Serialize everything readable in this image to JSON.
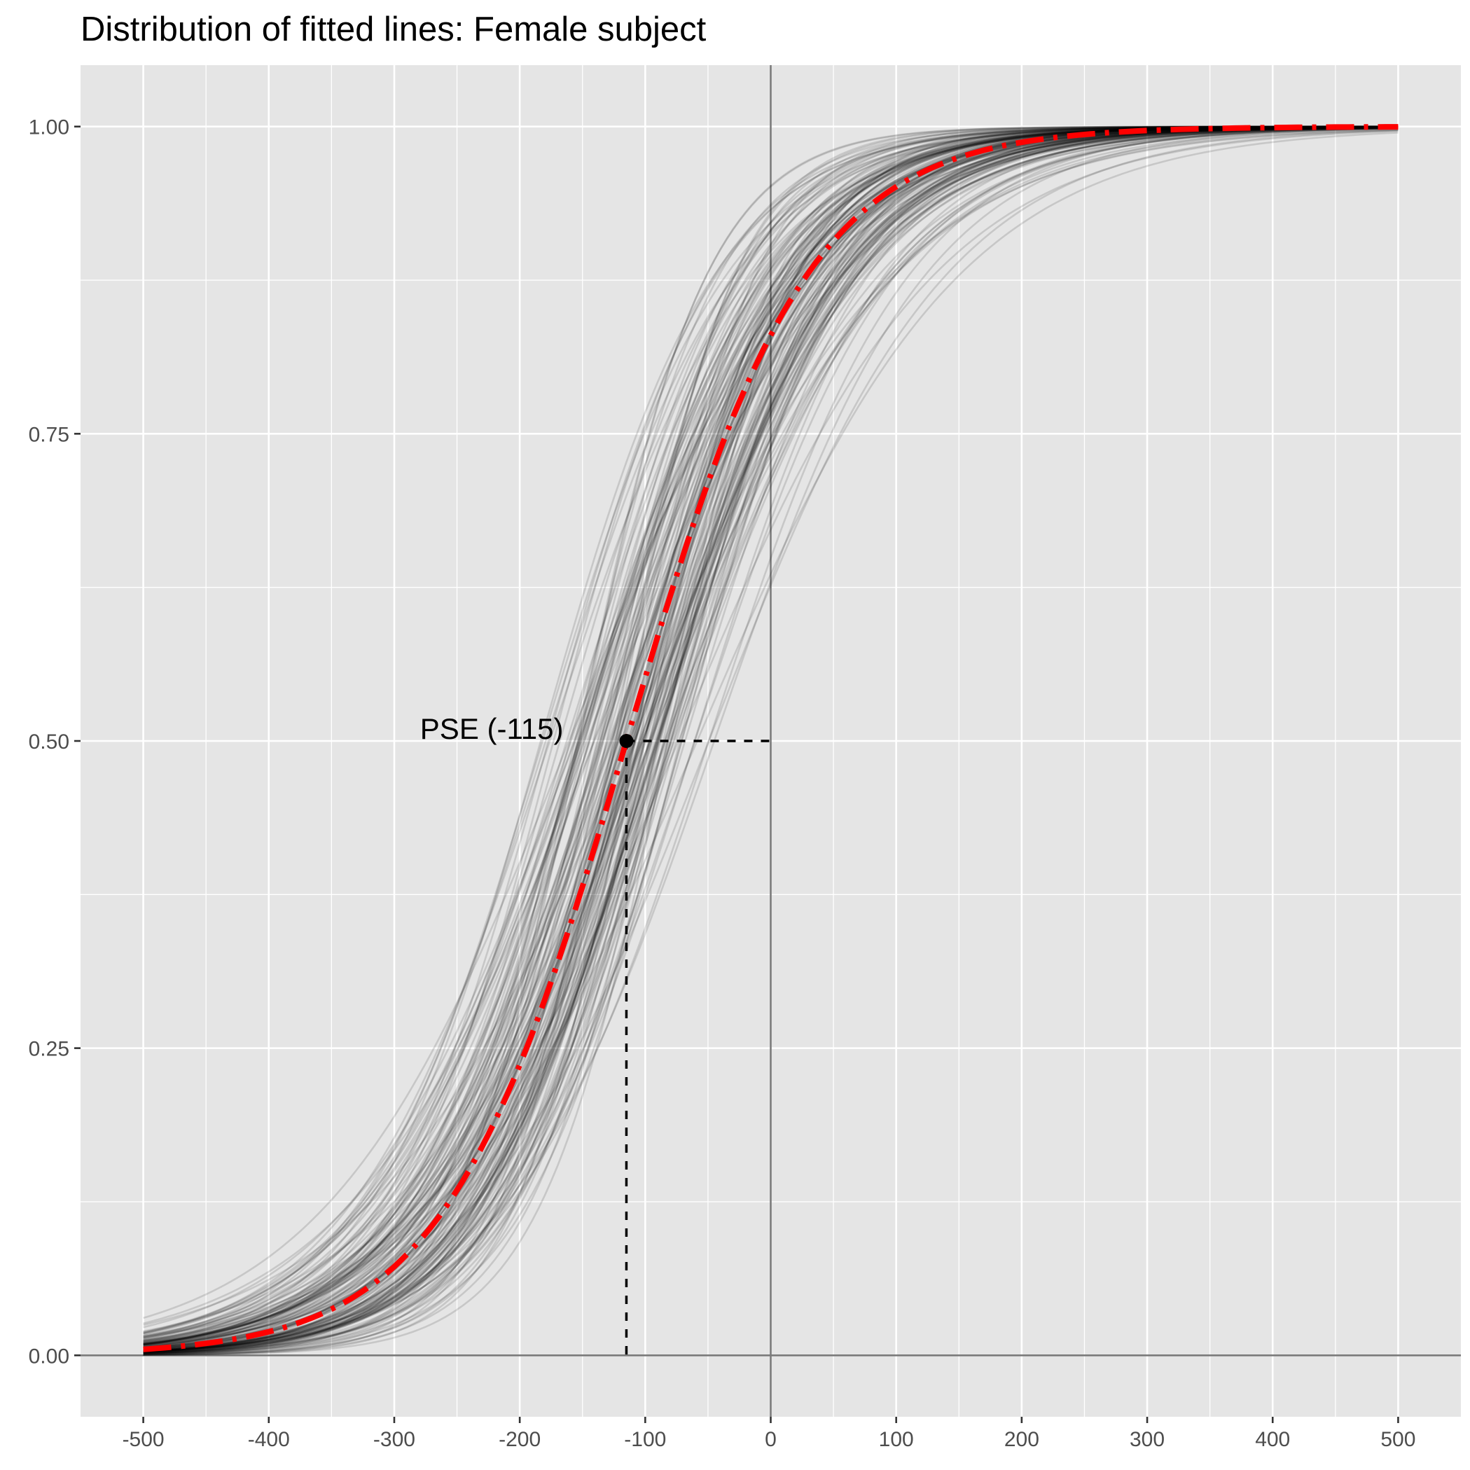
{
  "chart_data": {
    "type": "line",
    "title": "Distribution of fitted lines: Female subject",
    "xlabel": "",
    "ylabel": "",
    "xlim": [
      -550,
      550
    ],
    "ylim": [
      -0.05,
      1.05
    ],
    "x_ticks": [
      -500,
      -400,
      -300,
      -200,
      -100,
      0,
      100,
      200,
      300,
      400,
      500
    ],
    "x_tick_labels": [
      "-500",
      "-400",
      "-300",
      "-200",
      "-100",
      "0",
      "100",
      "200",
      "300",
      "400",
      "500"
    ],
    "y_ticks": [
      0,
      0.25,
      0.5,
      0.75,
      1
    ],
    "y_tick_labels": [
      "0.00",
      "0.25",
      "0.50",
      "0.75",
      "1.00"
    ],
    "grid": true,
    "x_domain": [
      -500,
      500
    ],
    "reference_lines": {
      "vertical_x": 0,
      "horizontal_y": 0
    },
    "fitted_lines": {
      "color": "#000000",
      "opacity": 0.13,
      "count": 150,
      "model": "logistic",
      "pse_range": [
        -200,
        -45
      ],
      "slope_range": [
        0.0095,
        0.021
      ]
    },
    "mean_line": {
      "color": "#ff0000",
      "style": "dash-dot",
      "pse": -115,
      "slope": 0.0138
    },
    "pse_point": {
      "x": -115,
      "y": 0.5,
      "label": "PSE (-115)"
    }
  }
}
